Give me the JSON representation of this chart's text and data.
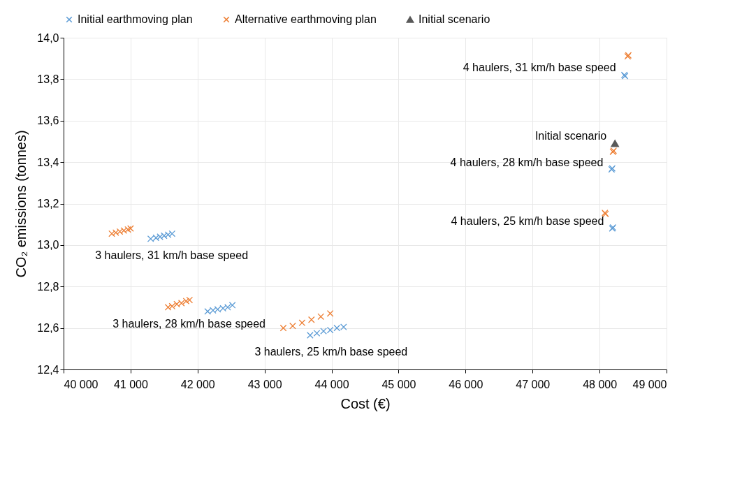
{
  "chart_data": {
    "type": "scatter",
    "xlabel": "Cost (€)",
    "ylabel": "CO₂ emissions (tonnes)",
    "xlim": [
      40000,
      49000
    ],
    "ylim": [
      12.4,
      14.0
    ],
    "xticks": [
      {
        "value": 40000,
        "label": "40 000"
      },
      {
        "value": 41000,
        "label": "41 000"
      },
      {
        "value": 42000,
        "label": "42 000"
      },
      {
        "value": 43000,
        "label": "43 000"
      },
      {
        "value": 44000,
        "label": "44 000"
      },
      {
        "value": 45000,
        "label": "45 000"
      },
      {
        "value": 46000,
        "label": "46 000"
      },
      {
        "value": 47000,
        "label": "47 000"
      },
      {
        "value": 48000,
        "label": "48 000"
      },
      {
        "value": 49000,
        "label": "49 000"
      }
    ],
    "yticks": [
      {
        "value": 12.4,
        "label": "12,4"
      },
      {
        "value": 12.6,
        "label": "12,6"
      },
      {
        "value": 12.8,
        "label": "12,8"
      },
      {
        "value": 13.0,
        "label": "13,0"
      },
      {
        "value": 13.2,
        "label": "13,2"
      },
      {
        "value": 13.4,
        "label": "13,4"
      },
      {
        "value": 13.6,
        "label": "13,6"
      },
      {
        "value": 13.8,
        "label": "13,8"
      },
      {
        "value": 14.0,
        "label": "14,0"
      }
    ],
    "grid": true,
    "legend": "top",
    "series": [
      {
        "name": "Initial earthmoving plan",
        "color": "#5b9bd5",
        "marker": "cross",
        "x": [
          41300,
          41380,
          41440,
          41500,
          41560,
          41620,
          42150,
          42230,
          42300,
          42380,
          42450,
          42520,
          43680,
          43780,
          43880,
          43980,
          44080,
          44180,
          48370,
          48380,
          48180,
          48190,
          48190,
          48200
        ],
        "values": [
          13.03,
          13.035,
          13.04,
          13.045,
          13.05,
          13.055,
          12.68,
          12.685,
          12.69,
          12.695,
          12.7,
          12.71,
          12.565,
          12.575,
          12.585,
          12.59,
          12.6,
          12.605,
          13.82,
          13.815,
          13.365,
          13.37,
          13.08,
          13.085
        ]
      },
      {
        "name": "Alternative earthmoving plan",
        "color": "#ed7d31",
        "marker": "cross",
        "x": [
          40720,
          40780,
          40840,
          40900,
          40960,
          41000,
          41560,
          41620,
          41690,
          41760,
          41830,
          41880,
          43280,
          43420,
          43560,
          43700,
          43840,
          43980,
          48420,
          48430,
          48200,
          48210,
          48080,
          48090
        ],
        "values": [
          13.055,
          13.06,
          13.065,
          13.07,
          13.075,
          13.08,
          12.7,
          12.705,
          12.715,
          12.72,
          12.73,
          12.735,
          12.6,
          12.61,
          12.625,
          12.64,
          12.655,
          12.67,
          13.91,
          13.915,
          13.45,
          13.455,
          13.155,
          13.15
        ]
      },
      {
        "name": "Initial scenario",
        "color": "#595959",
        "marker": "triangle",
        "x": [
          48230
        ],
        "values": [
          13.49
        ]
      }
    ],
    "annotations": [
      {
        "text": "4 haulers, 31 km/h base speed",
        "x": 48370,
        "y": 13.82
      },
      {
        "text": "Initial scenario",
        "x": 48230,
        "y": 13.49
      },
      {
        "text": "4 haulers, 28 km/h base speed",
        "x": 48180,
        "y": 13.365
      },
      {
        "text": "4 haulers, 25 km/h base speed",
        "x": 48190,
        "y": 13.08
      },
      {
        "text": "3 haulers, 31 km/h base speed",
        "x": 41300,
        "y": 13.03
      },
      {
        "text": "3 haulers, 28 km/h base speed",
        "x": 41560,
        "y": 12.7
      },
      {
        "text": "3 haulers, 25 km/h base speed",
        "x": 43680,
        "y": 12.565
      }
    ]
  }
}
